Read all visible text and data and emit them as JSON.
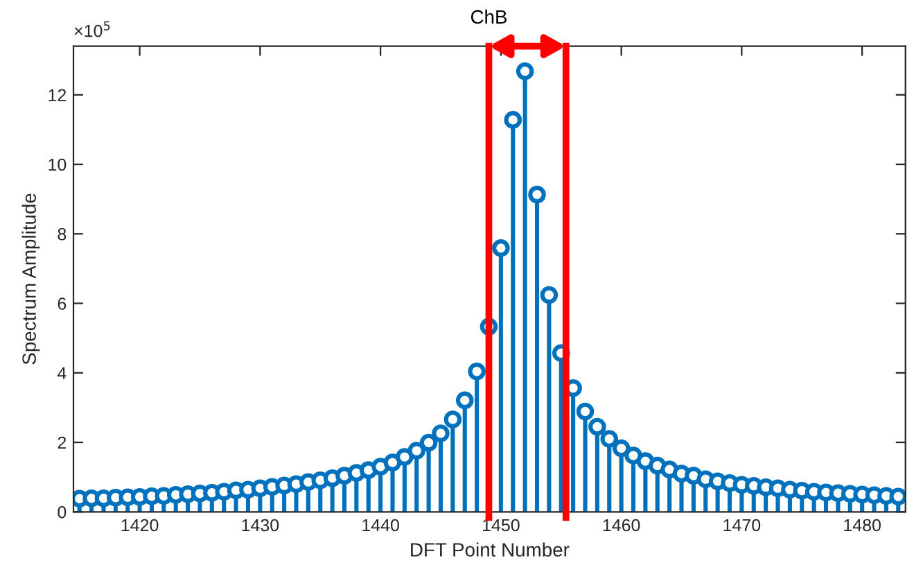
{
  "chart_data": {
    "type": "lollipop",
    "xlabel": "DFT Point Number",
    "ylabel": "Spectrum Amplitude",
    "annotations": [
      "×10$^{5}$"
    ],
    "x": [
      1415,
      1416,
      1417,
      1418,
      1419,
      1420,
      1421,
      1422,
      1423,
      1424,
      1425,
      1426,
      1427,
      1428,
      1429,
      1430,
      1431,
      1432,
      1433,
      1434,
      1435,
      1436,
      1437,
      1438,
      1439,
      1440,
      1441,
      1442,
      1443,
      1444,
      1445,
      1446,
      1447,
      1448,
      1449,
      1450,
      1451,
      1452,
      1453,
      1454,
      1455,
      1456,
      1457,
      1458,
      1459,
      1460,
      1461,
      1462,
      1463,
      1464,
      1465,
      1466,
      1467,
      1468,
      1469,
      1470,
      1471,
      1472,
      1473,
      1474,
      1475,
      1476,
      1477,
      1478,
      1479,
      1480,
      1481,
      1482,
      1483
    ],
    "series": [
      {
        "color": "#0072bd",
        "values": [
          0.38,
          0.39,
          0.39,
          0.41,
          0.42,
          0.43,
          0.45,
          0.46,
          0.49,
          0.51,
          0.53,
          0.55,
          0.58,
          0.62,
          0.64,
          0.68,
          0.72,
          0.76,
          0.8,
          0.86,
          0.91,
          0.97,
          1.04,
          1.12,
          1.2,
          1.3,
          1.42,
          1.58,
          1.76,
          1.99,
          2.26,
          2.66,
          3.21,
          4.04,
          5.33,
          7.59,
          11.28,
          12.68,
          9.13,
          6.24,
          4.57,
          3.56,
          2.89,
          2.45,
          2.1,
          1.83,
          1.62,
          1.46,
          1.33,
          1.22,
          1.1,
          1.04,
          0.94,
          0.88,
          0.83,
          0.78,
          0.75,
          0.71,
          0.68,
          0.64,
          0.61,
          0.58,
          0.56,
          0.54,
          0.52,
          0.5,
          0.48,
          0.46,
          0.44
        ]
      }
    ],
    "marker": "circle",
    "xlim": [
      1414.5,
      1483.6
    ],
    "ylim": [
      0,
      13.4
    ],
    "xticks": [
      1420,
      1430,
      1440,
      1450,
      1460,
      1470,
      1480
    ],
    "yticks": [
      0,
      2,
      4,
      6,
      8,
      10,
      12
    ],
    "ref_lines": [
      {
        "axis": "x",
        "value": 1449.0,
        "label": "ChB",
        "color": "#ff0000"
      },
      {
        "axis": "x",
        "value": 1455.4,
        "color": "#ff0000"
      }
    ],
    "grid": false,
    "legend": false
  }
}
